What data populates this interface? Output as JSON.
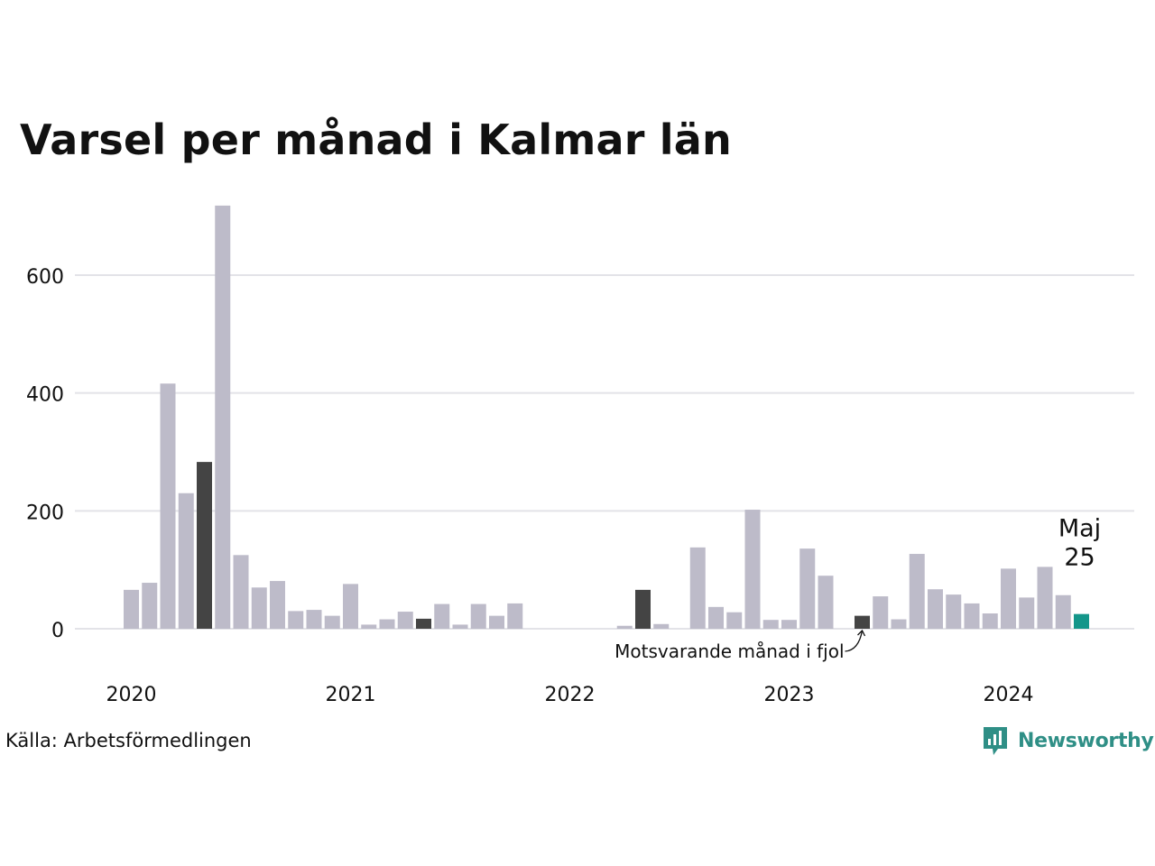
{
  "title": "Varsel per månad i Kalmar län",
  "source": "Källa: Arbetsförmedlingen",
  "brand": {
    "name": "Newsworthy",
    "icon": "newsworthy-logo-icon",
    "color": "#2f8f86"
  },
  "colors": {
    "bar": "#bdbbc9",
    "same_month_previous_years": "#444444",
    "current": "#13968a",
    "grid": "#e3e3e8"
  },
  "chart_data": {
    "type": "bar",
    "x_start": "2020-01",
    "ylim": [
      0,
      720
    ],
    "yticks": [
      0,
      200,
      400,
      600
    ],
    "year_labels": [
      "2020",
      "2021",
      "2022",
      "2023",
      "2024"
    ],
    "values": [
      66,
      78,
      416,
      230,
      283,
      718,
      125,
      70,
      81,
      30,
      32,
      22,
      76,
      7,
      16,
      29,
      17,
      42,
      7,
      42,
      22,
      43,
      0,
      0,
      0,
      0,
      0,
      5,
      66,
      8,
      0,
      138,
      37,
      28,
      202,
      15,
      15,
      136,
      90,
      0,
      22,
      55,
      16,
      127,
      67,
      58,
      43,
      26,
      102,
      53,
      105,
      57,
      25
    ],
    "highlight_same_month_indices": [
      4,
      16,
      28,
      40
    ],
    "current_index": 52,
    "annotations": {
      "current_month": "Maj",
      "current_value": "25",
      "previous_year": "Motsvarande månad i fjol"
    },
    "grid": true
  }
}
